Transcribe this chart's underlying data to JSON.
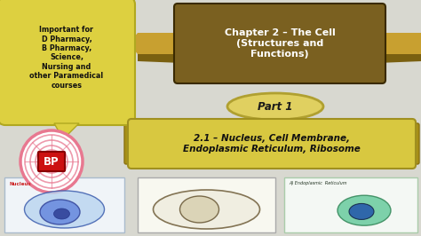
{
  "bg_color": "#d8d8d0",
  "title_banner_text": "Chapter 2 – The Cell\n(Structures and\nFunctions)",
  "title_banner_color": "#7a6020",
  "title_banner_ribbon_color": "#c8a030",
  "title_banner_text_color": "#ffffff",
  "part_text": "Part 1",
  "part_ellipse_color": "#e0d060",
  "part_ellipse_edge": "#b0a030",
  "part_text_color": "#1a1a1a",
  "yellow_box_text": "Important for\nD Pharmacy,\nB Pharmacy,\nScience,\nNursing and\nother Paramedical\ncourses",
  "yellow_box_color": "#ddd040",
  "yellow_box_edge": "#b0a820",
  "yellow_box_text_color": "#111111",
  "subtitle_banner_text": "2.1 – Nucleus, Cell Membrane,\nEndoplasmic Reticulum, Ribosome",
  "subtitle_banner_color": "#d8c840",
  "subtitle_banner_edge": "#a09020",
  "subtitle_banner_text_color": "#111111",
  "logo_ring_color": "#e87890",
  "logo_bg_color": "#ffffff",
  "logo_box_color": "#cc1111",
  "logo_text": "BP",
  "nucleus_box_bg": "#f0f4f8",
  "cell_box_bg": "#f8f8f0",
  "er_box_bg": "#f4f8f4"
}
